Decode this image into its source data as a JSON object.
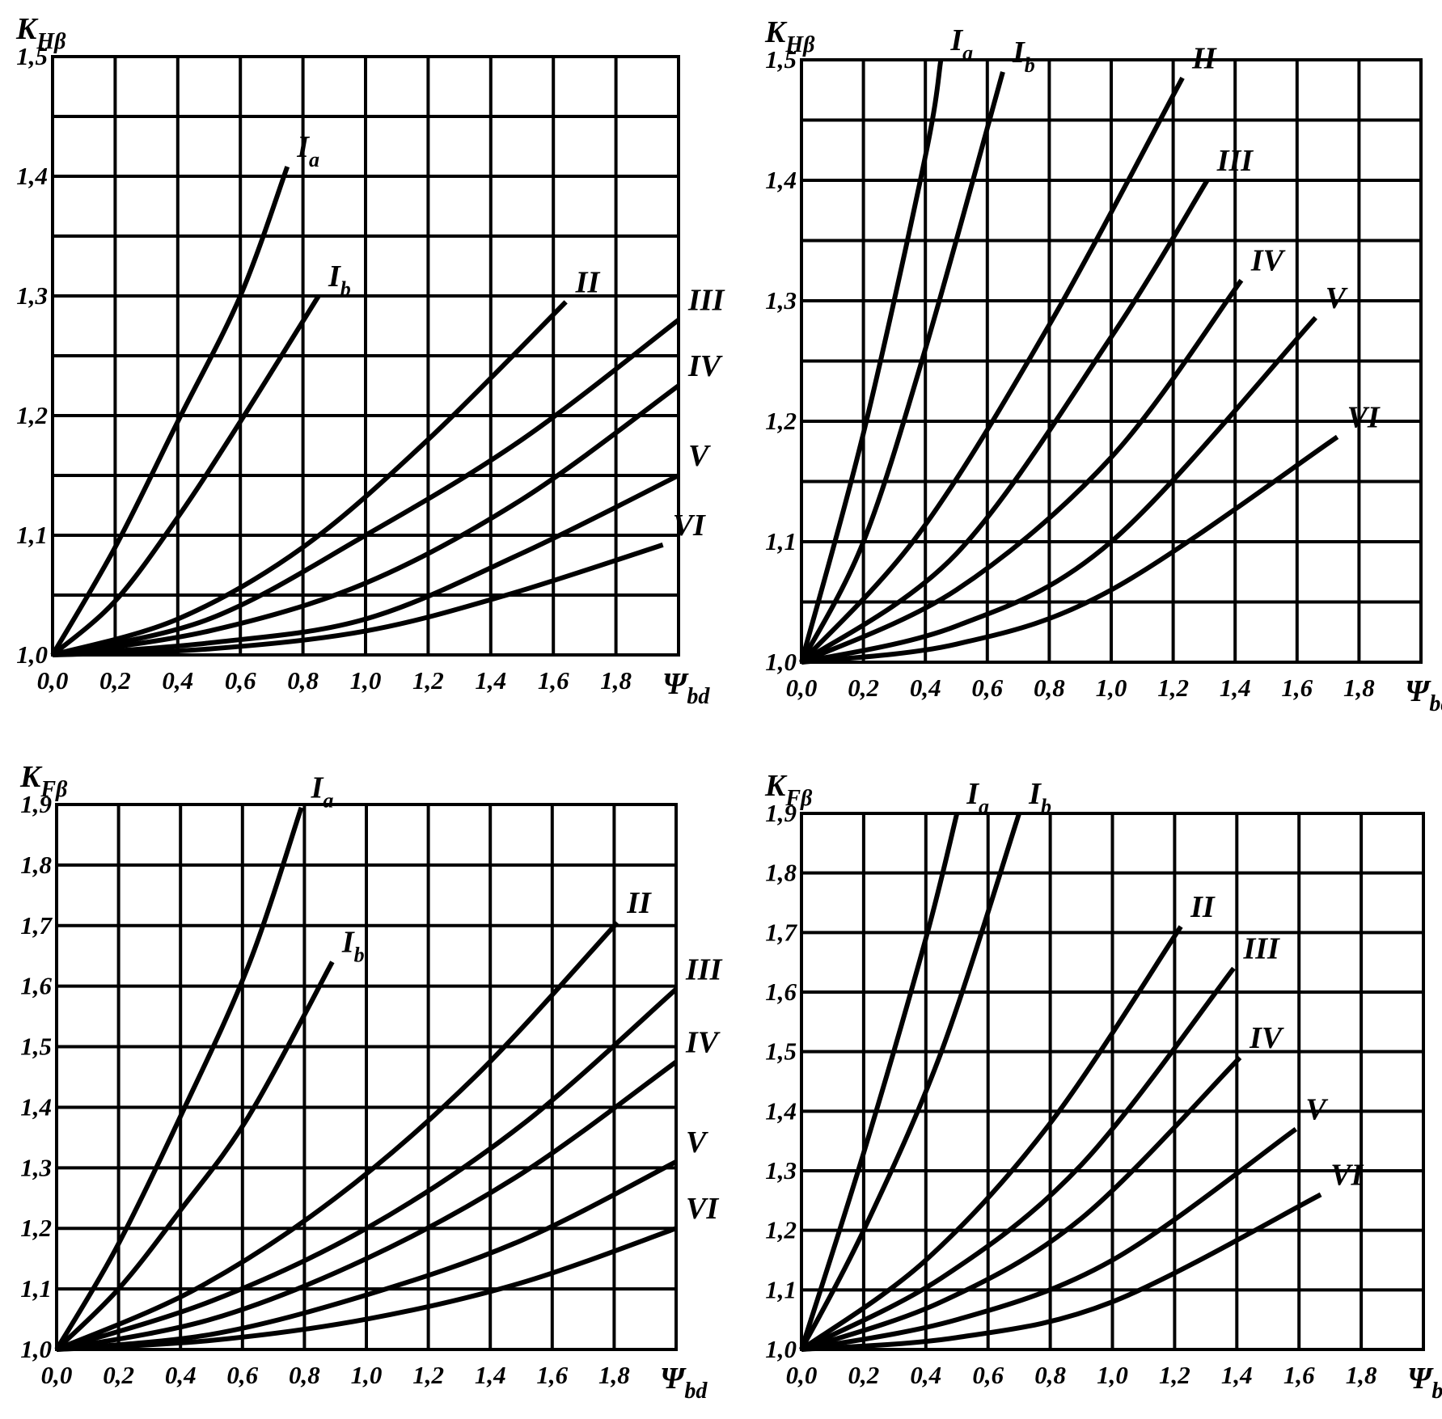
{
  "chart_data": [
    {
      "type": "line",
      "ylabel": "K",
      "ylabel_sub": "Hβ",
      "xlabel": "Ψ",
      "xlabel_sub": "bd",
      "color": "#000000",
      "grid": true,
      "xlim": [
        0,
        2.0
      ],
      "ylim": [
        1.0,
        1.5
      ],
      "xticks": [
        {
          "value": 0,
          "label": "0,0"
        },
        {
          "value": 0.2,
          "label": "0,2"
        },
        {
          "value": 0.4,
          "label": "0,4"
        },
        {
          "value": 0.6,
          "label": "0,6"
        },
        {
          "value": 0.8,
          "label": "0,8"
        },
        {
          "value": 1.0,
          "label": "1,0"
        },
        {
          "value": 1.2,
          "label": "1,2"
        },
        {
          "value": 1.4,
          "label": "1,4"
        },
        {
          "value": 1.6,
          "label": "1,6"
        },
        {
          "value": 1.8,
          "label": "1,8"
        }
      ],
      "yticks": [
        {
          "value": 1.0,
          "label": "1,0"
        },
        {
          "value": 1.1,
          "label": "1,1"
        },
        {
          "value": 1.2,
          "label": "1,2"
        },
        {
          "value": 1.3,
          "label": "1,3"
        },
        {
          "value": 1.4,
          "label": "1,4"
        },
        {
          "value": 1.5,
          "label": "1,5"
        }
      ],
      "minor_yticks": [
        1.05,
        1.15,
        1.25,
        1.35,
        1.45
      ],
      "series": [
        {
          "name": "I",
          "name_sub": "a",
          "x": [
            0,
            0.2,
            0.4,
            0.6,
            0.75
          ],
          "values": [
            1.0,
            1.09,
            1.195,
            1.3,
            1.408
          ]
        },
        {
          "name": "I",
          "name_sub": "b",
          "x": [
            0,
            0.2,
            0.4,
            0.6,
            0.85
          ],
          "values": [
            1.0,
            1.045,
            1.115,
            1.195,
            1.3
          ]
        },
        {
          "name": "II",
          "x": [
            0,
            0.4,
            0.8,
            1.2,
            1.64
          ],
          "values": [
            1.0,
            1.03,
            1.09,
            1.18,
            1.295
          ]
        },
        {
          "name": "III",
          "x": [
            0,
            0.5,
            1.0,
            1.5,
            2.0
          ],
          "values": [
            1.0,
            1.03,
            1.1,
            1.18,
            1.28
          ]
        },
        {
          "name": "IV",
          "x": [
            0,
            0.5,
            1.0,
            1.5,
            2.0
          ],
          "values": [
            1.0,
            1.02,
            1.06,
            1.13,
            1.225
          ]
        },
        {
          "name": "V",
          "x": [
            0,
            0.5,
            1.0,
            1.5,
            2.0
          ],
          "values": [
            1.0,
            1.01,
            1.03,
            1.085,
            1.15
          ]
        },
        {
          "name": "VI",
          "x": [
            0,
            0.5,
            1.0,
            1.45,
            1.95
          ],
          "values": [
            1.0,
            1.005,
            1.02,
            1.05,
            1.092
          ]
        }
      ]
    },
    {
      "type": "line",
      "ylabel": "K",
      "ylabel_sub": "Hβ",
      "xlabel": "Ψ",
      "xlabel_sub": "bd",
      "color": "#000000",
      "grid": true,
      "xlim": [
        0,
        2.0
      ],
      "ylim": [
        1.0,
        1.5
      ],
      "xticks": [
        {
          "value": 0,
          "label": "0,0"
        },
        {
          "value": 0.2,
          "label": "0,2"
        },
        {
          "value": 0.4,
          "label": "0,4"
        },
        {
          "value": 0.6,
          "label": "0,6"
        },
        {
          "value": 0.8,
          "label": "0,8"
        },
        {
          "value": 1.0,
          "label": "1,0"
        },
        {
          "value": 1.2,
          "label": "1,2"
        },
        {
          "value": 1.4,
          "label": "1,4"
        },
        {
          "value": 1.6,
          "label": "1,6"
        },
        {
          "value": 1.8,
          "label": "1,8"
        }
      ],
      "yticks": [
        {
          "value": 1.0,
          "label": "1,0"
        },
        {
          "value": 1.1,
          "label": "1,1"
        },
        {
          "value": 1.2,
          "label": "1,2"
        },
        {
          "value": 1.3,
          "label": "1,3"
        },
        {
          "value": 1.4,
          "label": "1,4"
        },
        {
          "value": 1.5,
          "label": "1,5"
        }
      ],
      "minor_yticks": [
        1.05,
        1.15,
        1.25,
        1.35,
        1.45
      ],
      "series": [
        {
          "name": "I",
          "name_sub": "a",
          "x": [
            0,
            0.2,
            0.4,
            0.45
          ],
          "values": [
            1.0,
            1.19,
            1.42,
            1.5
          ]
        },
        {
          "name": "I",
          "name_sub": "b",
          "x": [
            0,
            0.2,
            0.4,
            0.65
          ],
          "values": [
            1.0,
            1.1,
            1.26,
            1.49
          ]
        },
        {
          "name": "II",
          "x": [
            0,
            0.38,
            0.8,
            1.23
          ],
          "values": [
            1.0,
            1.107,
            1.28,
            1.485
          ]
        },
        {
          "name": "III",
          "x": [
            0,
            0.5,
            1.0,
            1.31
          ],
          "values": [
            1.0,
            1.09,
            1.27,
            1.4
          ]
        },
        {
          "name": "IV",
          "x": [
            0,
            0.5,
            1.0,
            1.42
          ],
          "values": [
            1.0,
            1.06,
            1.17,
            1.317
          ]
        },
        {
          "name": "V",
          "x": [
            0,
            0.5,
            1.0,
            1.66
          ],
          "values": [
            1.0,
            1.03,
            1.1,
            1.286
          ]
        },
        {
          "name": "VI",
          "x": [
            0,
            0.5,
            1.0,
            1.73
          ],
          "values": [
            1.0,
            1.015,
            1.06,
            1.187
          ]
        }
      ]
    },
    {
      "type": "line",
      "ylabel": "K",
      "ylabel_sub": "Fβ",
      "xlabel": "Ψ",
      "xlabel_sub": "bd",
      "color": "#000000",
      "grid": true,
      "xlim": [
        0,
        2.0
      ],
      "ylim": [
        1.0,
        1.9
      ],
      "xticks": [
        {
          "value": 0,
          "label": "0,0"
        },
        {
          "value": 0.2,
          "label": "0,2"
        },
        {
          "value": 0.4,
          "label": "0,4"
        },
        {
          "value": 0.6,
          "label": "0,6"
        },
        {
          "value": 0.8,
          "label": "0,8"
        },
        {
          "value": 1.0,
          "label": "1,0"
        },
        {
          "value": 1.2,
          "label": "1,2"
        },
        {
          "value": 1.4,
          "label": "1,4"
        },
        {
          "value": 1.6,
          "label": "1,6"
        },
        {
          "value": 1.8,
          "label": "1,8"
        }
      ],
      "yticks": [
        {
          "value": 1.0,
          "label": "1,0"
        },
        {
          "value": 1.1,
          "label": "1,1"
        },
        {
          "value": 1.2,
          "label": "1,2"
        },
        {
          "value": 1.3,
          "label": "1,3"
        },
        {
          "value": 1.4,
          "label": "1,4"
        },
        {
          "value": 1.5,
          "label": "1,5"
        },
        {
          "value": 1.6,
          "label": "1,6"
        },
        {
          "value": 1.7,
          "label": "1,7"
        },
        {
          "value": 1.8,
          "label": "1,8"
        },
        {
          "value": 1.9,
          "label": "1,9"
        }
      ],
      "series": [
        {
          "name": "I",
          "name_sub": "a",
          "x": [
            0,
            0.19,
            0.4,
            0.62,
            0.79
          ],
          "values": [
            1.0,
            1.165,
            1.385,
            1.635,
            1.895
          ]
        },
        {
          "name": "I",
          "name_sub": "b",
          "x": [
            0,
            0.2,
            0.4,
            0.62,
            0.89
          ],
          "values": [
            1.0,
            1.1,
            1.23,
            1.385,
            1.64
          ]
        },
        {
          "name": "II",
          "x": [
            0,
            0.45,
            0.9,
            1.35,
            1.81
          ],
          "values": [
            1.0,
            1.1,
            1.25,
            1.45,
            1.705
          ]
        },
        {
          "name": "III",
          "x": [
            0,
            0.5,
            1.0,
            1.5,
            2.0
          ],
          "values": [
            1.0,
            1.08,
            1.2,
            1.37,
            1.595
          ]
        },
        {
          "name": "IV",
          "x": [
            0,
            0.5,
            1.0,
            1.5,
            2.0
          ],
          "values": [
            1.0,
            1.05,
            1.15,
            1.29,
            1.475
          ]
        },
        {
          "name": "V",
          "x": [
            0,
            0.5,
            1.0,
            1.5,
            2.0
          ],
          "values": [
            1.0,
            1.025,
            1.09,
            1.18,
            1.31
          ]
        },
        {
          "name": "VI",
          "x": [
            0,
            0.5,
            1.0,
            1.5,
            2.0
          ],
          "values": [
            1.0,
            1.015,
            1.05,
            1.11,
            1.2
          ]
        }
      ]
    },
    {
      "type": "line",
      "ylabel": "K",
      "ylabel_sub": "Fβ",
      "xlabel": "Ψ",
      "xlabel_sub": "bd",
      "color": "#000000",
      "grid": true,
      "xlim": [
        0,
        2.0
      ],
      "ylim": [
        1.0,
        1.9
      ],
      "xticks": [
        {
          "value": 0,
          "label": "0,0"
        },
        {
          "value": 0.2,
          "label": "0,2"
        },
        {
          "value": 0.4,
          "label": "0,4"
        },
        {
          "value": 0.6,
          "label": "0,6"
        },
        {
          "value": 0.8,
          "label": "0,8"
        },
        {
          "value": 1.0,
          "label": "1,0"
        },
        {
          "value": 1.2,
          "label": "1,2"
        },
        {
          "value": 1.4,
          "label": "1,4"
        },
        {
          "value": 1.6,
          "label": "1,6"
        },
        {
          "value": 1.8,
          "label": "1,8"
        }
      ],
      "yticks": [
        {
          "value": 1.0,
          "label": "1,0"
        },
        {
          "value": 1.1,
          "label": "1,1"
        },
        {
          "value": 1.2,
          "label": "1,2"
        },
        {
          "value": 1.3,
          "label": "1,3"
        },
        {
          "value": 1.4,
          "label": "1,4"
        },
        {
          "value": 1.5,
          "label": "1,5"
        },
        {
          "value": 1.6,
          "label": "1,6"
        },
        {
          "value": 1.7,
          "label": "1,7"
        },
        {
          "value": 1.8,
          "label": "1,8"
        },
        {
          "value": 1.9,
          "label": "1,9"
        }
      ],
      "series": [
        {
          "name": "I",
          "name_sub": "a",
          "x": [
            0,
            0.2,
            0.4,
            0.5
          ],
          "values": [
            1.0,
            1.33,
            1.69,
            1.9
          ]
        },
        {
          "name": "I",
          "name_sub": "b",
          "x": [
            0,
            0.2,
            0.45,
            0.7
          ],
          "values": [
            1.0,
            1.2,
            1.5,
            1.9
          ]
        },
        {
          "name": "II",
          "x": [
            0,
            0.4,
            0.8,
            1.22
          ],
          "values": [
            1.0,
            1.15,
            1.38,
            1.71
          ]
        },
        {
          "name": "III",
          "x": [
            0,
            0.45,
            0.9,
            1.39
          ],
          "values": [
            1.0,
            1.12,
            1.31,
            1.64
          ]
        },
        {
          "name": "IV",
          "x": [
            0,
            0.45,
            0.9,
            1.41
          ],
          "values": [
            1.0,
            1.08,
            1.22,
            1.49
          ]
        },
        {
          "name": "V",
          "x": [
            0,
            0.5,
            1.0,
            1.59
          ],
          "values": [
            1.0,
            1.05,
            1.15,
            1.37
          ]
        },
        {
          "name": "VI",
          "x": [
            0,
            0.5,
            1.0,
            1.67
          ],
          "values": [
            1.0,
            1.02,
            1.08,
            1.26
          ]
        }
      ]
    }
  ]
}
